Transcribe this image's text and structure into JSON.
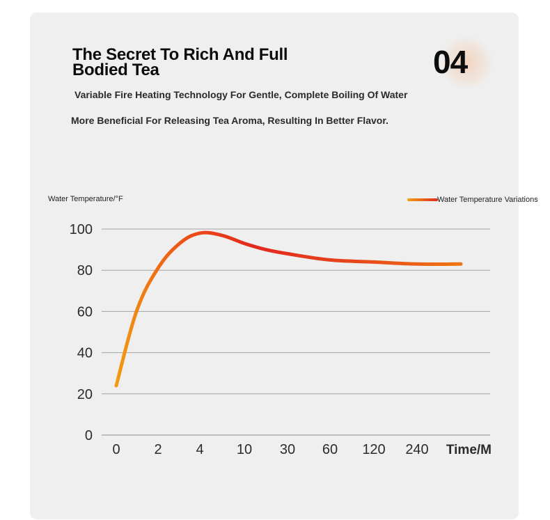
{
  "header": {
    "title": "The Secret To Rich And Full Bodied Tea",
    "subtitle_1": "Variable Fire Heating Technology For Gentle, Complete Boiling Of Water",
    "subtitle_2": "More Beneficial For Releasing Tea Aroma, Resulting In Better Flavor.",
    "section_number": "04"
  },
  "chart_data": {
    "type": "line",
    "title": "",
    "ylabel": "Water Temperature/°F",
    "xlabel": "Time/M",
    "categories": [
      "0",
      "2",
      "4",
      "10",
      "30",
      "60",
      "120",
      "240"
    ],
    "ylim": [
      0,
      100
    ],
    "yticks": [
      0,
      20,
      40,
      60,
      80,
      100
    ],
    "grid": true,
    "legend": "top-right",
    "series": [
      {
        "name": "Water Temperature Variations",
        "x": [
          "0",
          "1",
          "2",
          "3",
          "4",
          "5",
          "10",
          "20",
          "30",
          "60",
          "120",
          "240",
          "end"
        ],
        "values": [
          24,
          60,
          81,
          93,
          98,
          97,
          93,
          90,
          88,
          85,
          84,
          83,
          83
        ],
        "gradient_colors": [
          "#f2a012",
          "#e02a20"
        ]
      }
    ]
  }
}
